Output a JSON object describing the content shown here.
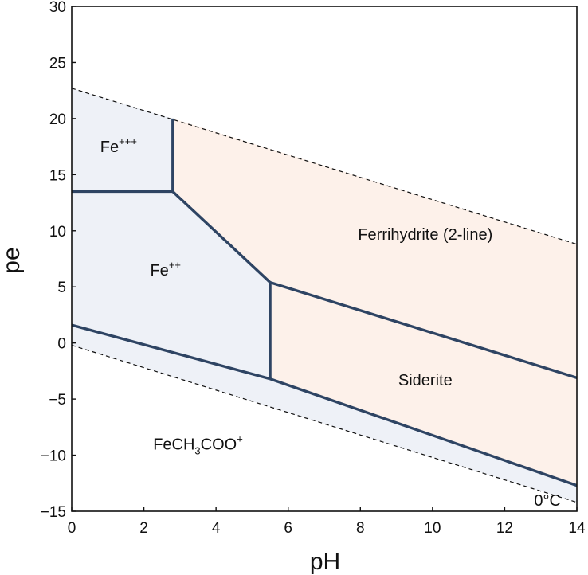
{
  "chart_data": {
    "type": "area",
    "title": "",
    "xlabel": "pH",
    "ylabel": "pe",
    "xlim": [
      0,
      14
    ],
    "ylim": [
      -15,
      30
    ],
    "xticks": [
      0,
      2,
      4,
      6,
      8,
      10,
      12,
      14
    ],
    "yticks": [
      -15,
      -10,
      -5,
      0,
      5,
      10,
      15,
      20,
      25,
      30
    ],
    "ytick_labels": [
      "−15",
      "−10",
      "−5",
      "0",
      "5",
      "10",
      "15",
      "20",
      "25",
      "30"
    ],
    "grid": false,
    "temperature_label": "0°C",
    "colors": {
      "aqueous_fill": "#eef1f7",
      "mineral_fill": "#fdf1ea",
      "boundary": "#2e4463",
      "stability_limit": "#111111"
    },
    "stability_limits": {
      "upper": {
        "x": [
          0,
          14
        ],
        "y": [
          22.7,
          8.8
        ]
      },
      "lower": {
        "x": [
          0,
          14
        ],
        "y": [
          -0.2,
          -14.2
        ]
      }
    },
    "boundaries": [
      {
        "x": [
          2.8,
          2.8
        ],
        "y": [
          13.5,
          20.0
        ]
      },
      {
        "x": [
          0,
          2.8
        ],
        "y": [
          13.5,
          13.5
        ]
      },
      {
        "x": [
          2.8,
          5.5
        ],
        "y": [
          13.5,
          5.4
        ]
      },
      {
        "x": [
          5.5,
          5.5
        ],
        "y": [
          5.4,
          -3.2
        ]
      },
      {
        "x": [
          5.5,
          14
        ],
        "y": [
          5.4,
          -3.1
        ]
      },
      {
        "x": [
          0,
          5.5
        ],
        "y": [
          1.6,
          -3.2
        ]
      },
      {
        "x": [
          5.5,
          14
        ],
        "y": [
          -3.2,
          -12.7
        ]
      }
    ],
    "regions": [
      {
        "name_main": "Fe",
        "name_sup": "+++",
        "x": 1.3,
        "y": 17.0,
        "fill": "aqueous",
        "polygon": {
          "x": [
            0,
            2.8,
            2.8,
            0
          ],
          "y": [
            22.7,
            20.0,
            13.5,
            13.5
          ]
        }
      },
      {
        "name_main": "Fe",
        "name_sup": "++",
        "x": 2.6,
        "y": 6.0,
        "fill": "aqueous",
        "polygon": {
          "x": [
            0,
            2.8,
            5.5,
            5.5,
            0
          ],
          "y": [
            13.5,
            13.5,
            5.4,
            -3.2,
            1.6
          ]
        }
      },
      {
        "name_main": "Ferrihydrite (2-line)",
        "x": 9.8,
        "y": 9.2,
        "fill": "mineral",
        "polygon": {
          "x": [
            2.8,
            14,
            14,
            5.5,
            2.8
          ],
          "y": [
            20.0,
            8.8,
            -3.1,
            5.4,
            13.5
          ]
        }
      },
      {
        "name_main": "Siderite",
        "x": 9.8,
        "y": -3.8,
        "fill": "mineral",
        "polygon": {
          "x": [
            5.5,
            14,
            14,
            5.5
          ],
          "y": [
            5.4,
            -3.1,
            -12.7,
            -3.2
          ]
        }
      },
      {
        "name_main": "FeCH",
        "name_sub": "3",
        "name_tail": "COO",
        "name_sup": "+",
        "x": 3.5,
        "y": -9.5,
        "fill": "aqueous",
        "polygon": {
          "x": [
            0,
            5.5,
            14,
            14,
            0
          ],
          "y": [
            1.6,
            -3.2,
            -12.7,
            -14.2,
            -0.2
          ]
        }
      }
    ]
  }
}
